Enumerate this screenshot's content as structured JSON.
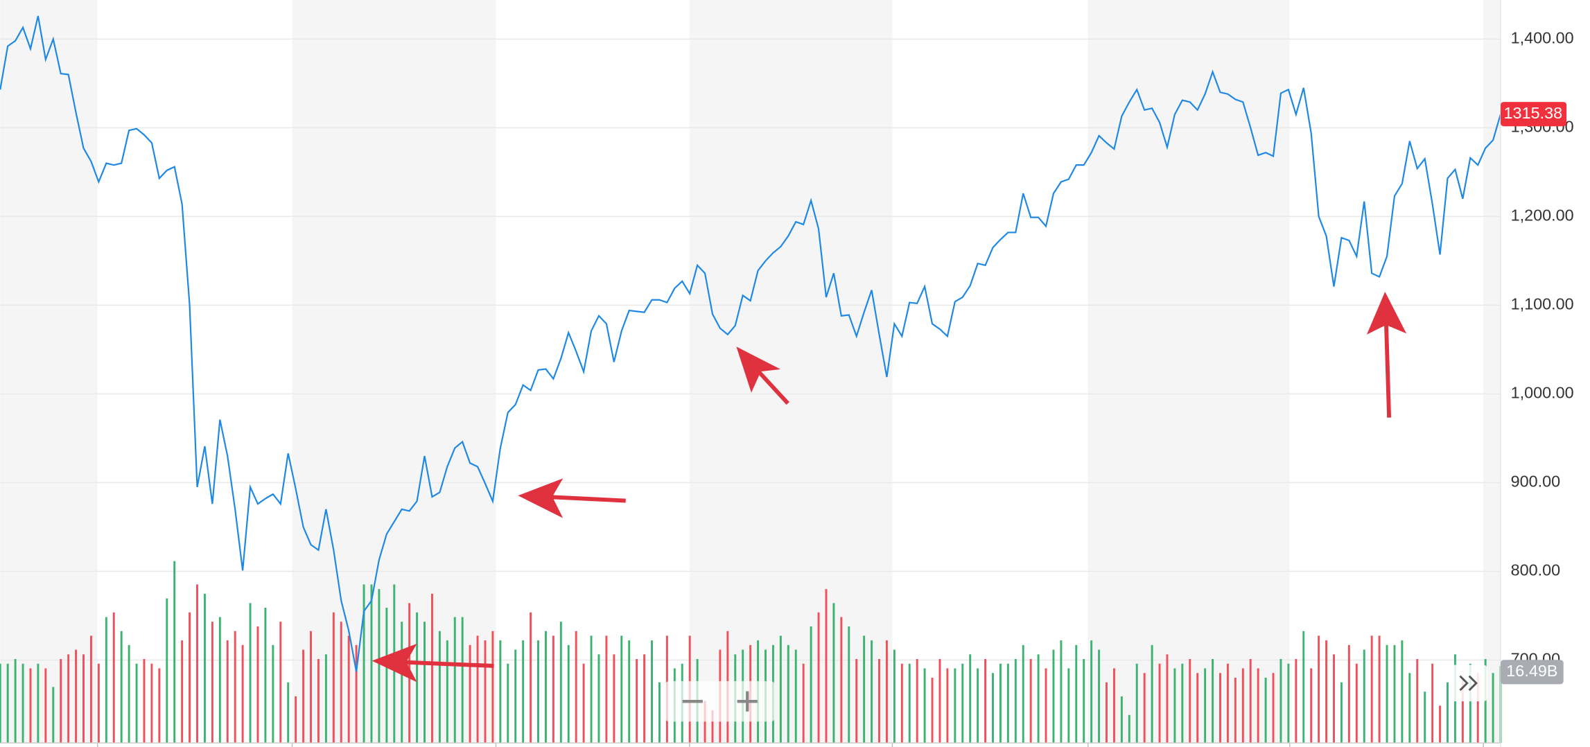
{
  "chart_data": {
    "type": "line",
    "series": [
      {
        "color": "#1e88e5",
        "values": [
          1343,
          1392,
          1398,
          1413,
          1389,
          1426,
          1377,
          1400,
          1361,
          1360,
          1317,
          1277,
          1262,
          1239,
          1260,
          1258,
          1260,
          1297,
          1299,
          1292,
          1283,
          1243,
          1252,
          1256,
          1214,
          1100,
          895,
          941,
          876,
          971,
          930,
          870,
          801,
          895,
          876,
          882,
          887,
          876,
          933,
          893,
          850,
          830,
          824,
          870,
          824,
          767,
          733,
          687,
          755,
          767,
          813,
          842,
          856,
          870,
          868,
          879,
          930,
          884,
          889,
          918,
          939,
          946,
          922,
          918,
          899,
          879,
          939,
          979,
          988,
          1010,
          1004,
          1027,
          1028,
          1017,
          1040,
          1069,
          1048,
          1025,
          1071,
          1088,
          1079,
          1036,
          1071,
          1094,
          1093,
          1092,
          1106,
          1106,
          1103,
          1119,
          1127,
          1113,
          1145,
          1136,
          1090,
          1074,
          1067,
          1077,
          1111,
          1105,
          1139,
          1150,
          1159,
          1166,
          1178,
          1194,
          1191,
          1218,
          1186,
          1109,
          1136,
          1088,
          1089,
          1065,
          1092,
          1117,
          1067,
          1019,
          1079,
          1065,
          1103,
          1102,
          1121,
          1079,
          1073,
          1065,
          1104,
          1109,
          1122,
          1147,
          1145,
          1165,
          1174,
          1182,
          1182,
          1226,
          1199,
          1199,
          1189,
          1226,
          1239,
          1242,
          1258,
          1258,
          1272,
          1291,
          1283,
          1276,
          1313,
          1329,
          1343,
          1320,
          1322,
          1306,
          1278,
          1315,
          1331,
          1329,
          1320,
          1338,
          1363,
          1340,
          1338,
          1332,
          1329,
          1300,
          1269,
          1272,
          1268,
          1339,
          1343,
          1315,
          1345,
          1294,
          1200,
          1178,
          1121,
          1176,
          1173,
          1155,
          1217,
          1136,
          1132,
          1155,
          1223,
          1237,
          1285,
          1254,
          1265,
          1214,
          1157,
          1243,
          1253,
          1220,
          1266,
          1258,
          1277,
          1286,
          1315.38
        ]
      }
    ],
    "ylim": [
      602,
      1444
    ],
    "yticks": [
      {
        "value": 700,
        "label": "700.00"
      },
      {
        "value": 800,
        "label": "800.00"
      },
      {
        "value": 900,
        "label": "900.00"
      },
      {
        "value": 1000,
        "label": "1,000.00"
      },
      {
        "value": 1100,
        "label": "1,100.00"
      },
      {
        "value": 1200,
        "label": "1,200.00"
      },
      {
        "value": 1300,
        "label": "1,300.00"
      },
      {
        "value": 1400,
        "label": "1,400.00"
      }
    ],
    "grid": true,
    "last_price_color": "#f0303c",
    "volume": {
      "values": [
        17,
        17,
        18,
        17,
        16,
        17,
        16,
        12,
        18,
        19,
        20,
        19,
        23,
        17,
        27,
        28,
        24,
        21,
        17,
        18,
        17,
        16,
        31,
        39,
        22,
        28,
        34,
        32,
        26,
        27,
        22,
        24,
        21,
        30,
        25,
        29,
        21,
        26,
        13,
        10,
        20,
        24,
        18,
        19,
        28,
        26,
        23,
        21,
        34,
        34,
        33,
        29,
        34,
        26,
        30,
        28,
        26,
        32,
        24,
        22,
        27,
        27,
        21,
        23,
        22,
        24,
        22,
        17,
        20,
        22,
        28,
        22,
        24,
        23,
        26,
        21,
        24,
        17,
        23,
        19,
        23,
        19,
        23,
        22,
        18,
        19,
        22,
        13,
        23,
        16,
        17,
        23,
        18,
        9,
        7,
        20,
        24,
        19,
        20,
        21,
        22,
        20,
        21,
        23,
        21,
        20,
        17,
        25,
        28,
        33,
        30,
        27,
        25,
        18,
        23,
        22,
        18,
        22,
        20,
        17,
        17,
        18,
        16,
        14,
        18,
        16,
        16,
        17,
        19,
        16,
        18,
        15,
        17,
        17,
        18,
        21,
        18,
        19,
        16,
        20,
        22,
        16,
        21,
        18,
        22,
        20,
        13,
        16,
        10,
        6,
        17,
        15,
        21,
        17,
        19,
        16,
        17,
        18,
        15,
        16,
        18,
        15,
        17,
        14,
        16,
        18,
        16,
        14,
        15,
        18,
        17,
        18,
        24,
        16,
        23,
        22,
        19,
        13,
        21,
        17,
        20,
        23,
        23,
        21,
        21,
        22,
        15,
        18,
        11,
        17,
        8,
        13,
        19,
        14,
        17,
        15,
        18,
        15,
        16.49
      ],
      "lim": [
        0,
        50
      ],
      "up_color": "#3cb371",
      "down_color": "#f0505a",
      "last_label": "16.49B"
    }
  }
}
